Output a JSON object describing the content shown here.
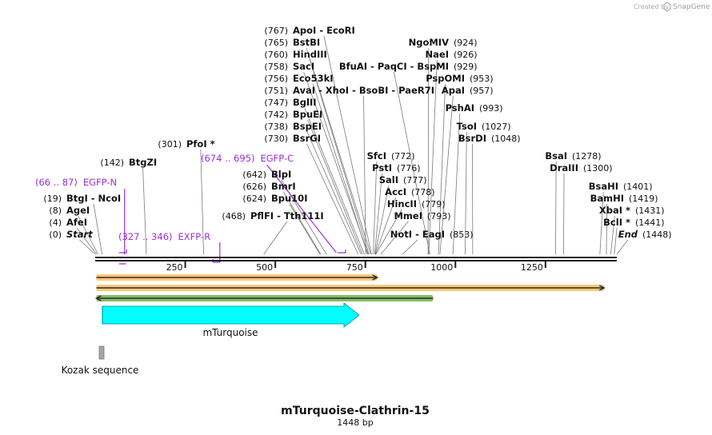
{
  "brand": {
    "created_by": "Created by",
    "name": "SnapGene"
  },
  "map": {
    "name": "mTurquoise-Clathrin-15",
    "length_label": "1448 bp",
    "length": 1448,
    "ticks": [
      {
        "value": 250,
        "label": "250"
      },
      {
        "value": 500,
        "label": "500"
      },
      {
        "value": 750,
        "label": "750"
      },
      {
        "value": 1000,
        "label": "1000"
      },
      {
        "value": 1250,
        "label": "1250"
      }
    ]
  },
  "sites": [
    {
      "pos": 767,
      "pos_label": "(767)",
      "names": "ApoI  - EcoRI",
      "side": "left"
    },
    {
      "pos": 765,
      "pos_label": "(765)",
      "names": "BstBI",
      "side": "left"
    },
    {
      "pos": 760,
      "pos_label": "(760)",
      "names": "HindIII",
      "side": "left"
    },
    {
      "pos": 758,
      "pos_label": "(758)",
      "names": "SacI",
      "side": "left"
    },
    {
      "pos": 756,
      "pos_label": "(756)",
      "names": "Eco53kI",
      "side": "left"
    },
    {
      "pos": 751,
      "pos_label": "(751)",
      "names": "AvaI  - XhoI  - BsoBI  - PaeR7I",
      "side": "left"
    },
    {
      "pos": 747,
      "pos_label": "(747)",
      "names": "BglII",
      "side": "left"
    },
    {
      "pos": 742,
      "pos_label": "(742)",
      "names": "BpuEI",
      "side": "left"
    },
    {
      "pos": 738,
      "pos_label": "(738)",
      "names": "BspEI",
      "side": "left"
    },
    {
      "pos": 730,
      "pos_label": "(730)",
      "names": "BsrGI",
      "side": "left"
    },
    {
      "pos": 642,
      "pos_label": "(642)",
      "names": "BlpI",
      "side": "left"
    },
    {
      "pos": 626,
      "pos_label": "(626)",
      "names": "BmrI",
      "side": "left"
    },
    {
      "pos": 624,
      "pos_label": "(624)",
      "names": "Bpu10I",
      "side": "left"
    },
    {
      "pos": 468,
      "pos_label": "(468)",
      "names": "PflFI  - Tth111I",
      "side": "left"
    },
    {
      "pos": 301,
      "pos_label": "(301)",
      "names": "PfoI *",
      "side": "left"
    },
    {
      "pos": 142,
      "pos_label": "(142)",
      "names": "BtgZI",
      "side": "left"
    },
    {
      "pos": 19,
      "pos_label": "(19)",
      "names": "BtgI  - NcoI",
      "side": "left"
    },
    {
      "pos": 8,
      "pos_label": "(8)",
      "names": "AgeI",
      "side": "left"
    },
    {
      "pos": 4,
      "pos_label": "(4)",
      "names": "AfeI",
      "side": "left"
    },
    {
      "pos": 0,
      "pos_label": "(0)",
      "names": "Start",
      "side": "left"
    },
    {
      "pos": 924,
      "pos_label": "(924)",
      "names": "NgoMIV",
      "side": "right"
    },
    {
      "pos": 926,
      "pos_label": "(926)",
      "names": "NaeI",
      "side": "right"
    },
    {
      "pos": 929,
      "pos_label": "(929)",
      "names": "BfuAI  - PaqCI  - BspMI",
      "side": "right"
    },
    {
      "pos": 953,
      "pos_label": "(953)",
      "names": "PspOMI",
      "side": "right"
    },
    {
      "pos": 957,
      "pos_label": "(957)",
      "names": "ApaI",
      "side": "right"
    },
    {
      "pos": 993,
      "pos_label": "(993)",
      "names": "PshAI",
      "side": "right"
    },
    {
      "pos": 1027,
      "pos_label": "(1027)",
      "names": "TsoI",
      "side": "right"
    },
    {
      "pos": 1048,
      "pos_label": "(1048)",
      "names": "BsrDI",
      "side": "right"
    },
    {
      "pos": 772,
      "pos_label": "(772)",
      "names": "SfcI",
      "side": "right"
    },
    {
      "pos": 776,
      "pos_label": "(776)",
      "names": "PstI",
      "side": "right"
    },
    {
      "pos": 777,
      "pos_label": "(777)",
      "names": "SalI",
      "side": "right"
    },
    {
      "pos": 778,
      "pos_label": "(778)",
      "names": "AccI",
      "side": "right"
    },
    {
      "pos": 779,
      "pos_label": "(779)",
      "names": "HincII",
      "side": "right"
    },
    {
      "pos": 793,
      "pos_label": "(793)",
      "names": "MmeI",
      "side": "right"
    },
    {
      "pos": 853,
      "pos_label": "(853)",
      "names": "NotI  - EagI",
      "side": "right"
    },
    {
      "pos": 1278,
      "pos_label": "(1278)",
      "names": "BsaI",
      "side": "right"
    },
    {
      "pos": 1300,
      "pos_label": "(1300)",
      "names": "DraIII",
      "side": "right"
    },
    {
      "pos": 1401,
      "pos_label": "(1401)",
      "names": "BsaHI",
      "side": "right"
    },
    {
      "pos": 1419,
      "pos_label": "(1419)",
      "names": "BamHI",
      "side": "right"
    },
    {
      "pos": 1431,
      "pos_label": "(1431)",
      "names": "XbaI *",
      "side": "right"
    },
    {
      "pos": 1441,
      "pos_label": "(1441)",
      "names": "BclI *",
      "side": "right"
    },
    {
      "pos": 1448,
      "pos_label": "(1448)",
      "names": "End",
      "side": "right"
    }
  ],
  "primers": [
    {
      "range": "(66 .. 87)",
      "name": "EGFP-N",
      "start": 66,
      "end": 87,
      "strand": "forward"
    },
    {
      "range": "(327 .. 346)",
      "name": "EXFP-R",
      "start": 327,
      "end": 346,
      "strand": "reverse"
    },
    {
      "range": "(674 .. 695)",
      "name": "EGFP-C",
      "start": 674,
      "end": 695,
      "strand": "forward"
    }
  ],
  "features": [
    {
      "name": "mTurquoise",
      "start": 1,
      "end": 717,
      "type": "CDS",
      "color": "#00ffff"
    },
    {
      "name": "Kozak sequence",
      "start": 1,
      "end": 10,
      "type": "misc",
      "color": "#a6a6a6"
    }
  ],
  "orfs": [
    {
      "start": 1,
      "end": 783,
      "strand": "forward",
      "color": "#ffb74a"
    },
    {
      "start": 1,
      "end": 1413,
      "strand": "forward",
      "color": "#ffb74a"
    },
    {
      "start": 1,
      "end": 938,
      "strand": "reverse",
      "color": "#5aa832"
    }
  ],
  "colors": {
    "primer": "#9b30d9",
    "backbone": "#1a1a1a"
  }
}
